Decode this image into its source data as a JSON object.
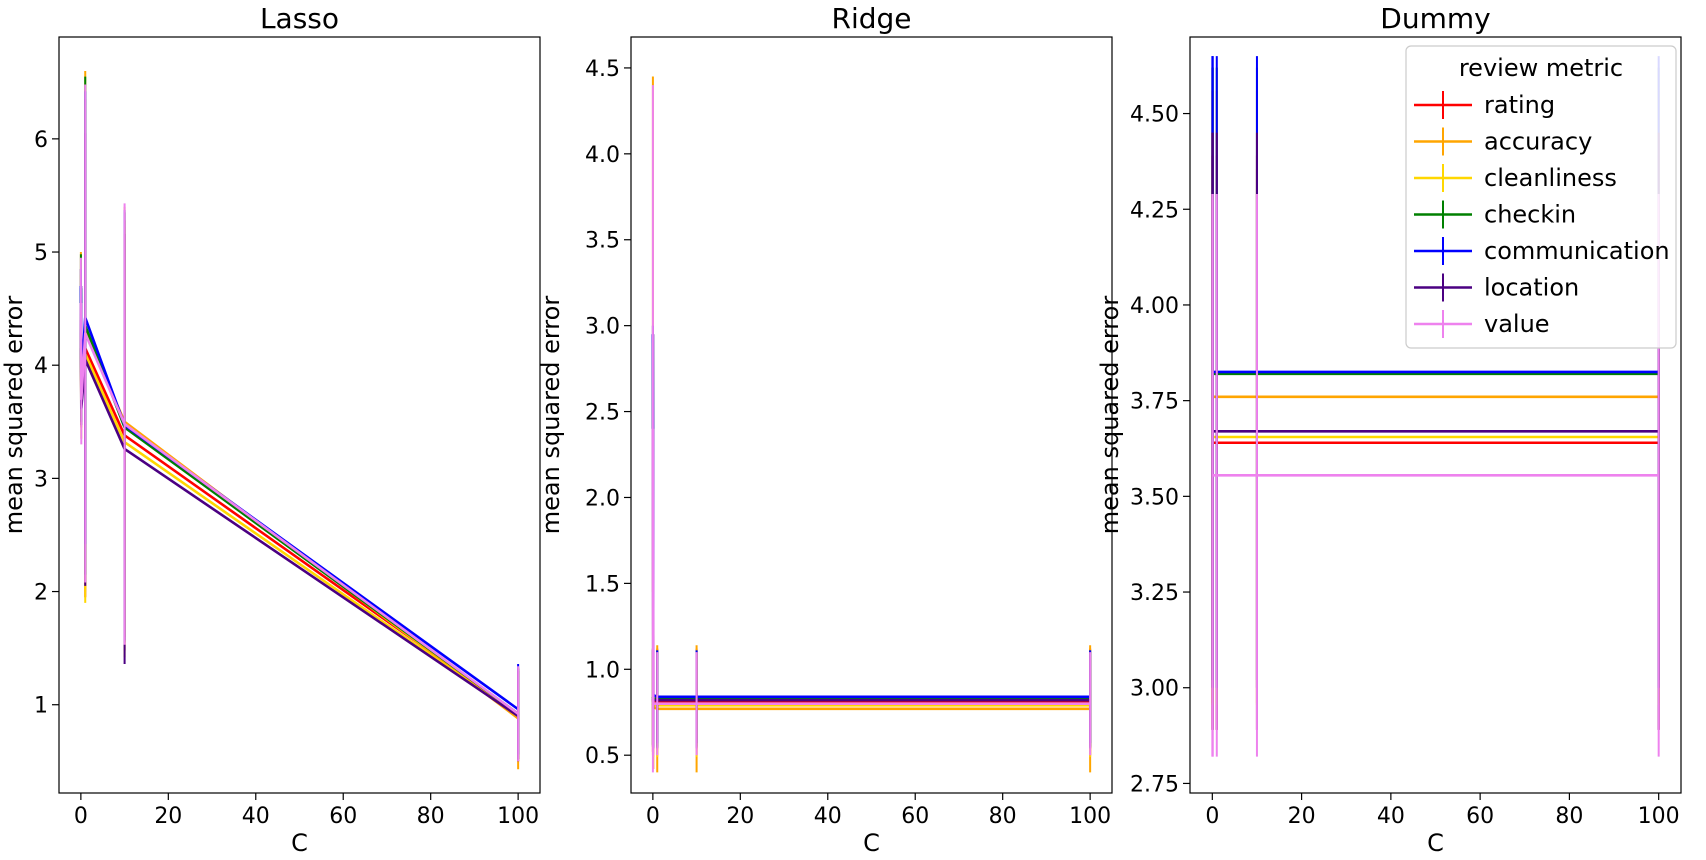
{
  "chart_data": [
    {
      "type": "line",
      "title": "Lasso",
      "xlabel": "C",
      "ylabel": "mean squared error",
      "xlim": [
        -5,
        105
      ],
      "ylim": [
        0.22,
        6.9
      ],
      "x": [
        0.01,
        0.1,
        1,
        10,
        100
      ],
      "xticks": [
        0,
        20,
        40,
        60,
        80,
        100
      ],
      "xticklabels": [
        "0",
        "20",
        "40",
        "60",
        "80",
        "100"
      ],
      "yticks": [
        1,
        2,
        3,
        4,
        5,
        6
      ],
      "yticklabels": [
        "1",
        "2",
        "3",
        "4",
        "5",
        "6"
      ],
      "series": [
        {
          "name": "rating",
          "color": "#ff0000",
          "values": [
            4.55,
            3.75,
            4.15,
            3.38,
            0.92
          ],
          "err": [
            0.3,
            0.3,
            2.2,
            1.9,
            0.4
          ]
        },
        {
          "name": "accuracy",
          "color": "#ffa500",
          "values": [
            4.7,
            3.85,
            4.3,
            3.5,
            0.88
          ],
          "err": [
            0.3,
            0.3,
            2.3,
            1.9,
            0.45
          ]
        },
        {
          "name": "cleanliness",
          "color": "#ffd700",
          "values": [
            4.5,
            3.65,
            4.1,
            3.32,
            0.9
          ],
          "err": [
            0.3,
            0.3,
            2.2,
            1.9,
            0.4
          ]
        },
        {
          "name": "checkin",
          "color": "#008000",
          "values": [
            4.68,
            3.8,
            4.35,
            3.45,
            0.92
          ],
          "err": [
            0.3,
            0.3,
            2.2,
            1.9,
            0.4
          ]
        },
        {
          "name": "communication",
          "color": "#0000ff",
          "values": [
            4.7,
            3.88,
            4.42,
            3.47,
            0.96
          ],
          "err": [
            0.15,
            0.15,
            2.0,
            1.9,
            0.4
          ]
        },
        {
          "name": "location",
          "color": "#4b0082",
          "values": [
            4.4,
            3.62,
            4.05,
            3.26,
            0.9
          ],
          "err": [
            0.15,
            0.15,
            2.0,
            1.9,
            0.4
          ]
        },
        {
          "name": "value",
          "color": "#ee82ee",
          "values": [
            4.55,
            3.7,
            4.28,
            3.48,
            0.92
          ],
          "err": [
            0.4,
            0.4,
            2.2,
            1.95,
            0.42
          ]
        }
      ]
    },
    {
      "type": "line",
      "title": "Ridge",
      "xlabel": "C",
      "ylabel": "mean squared error",
      "xlim": [
        -5,
        105
      ],
      "ylim": [
        0.28,
        4.68
      ],
      "x": [
        0.01,
        0.1,
        1,
        10,
        100
      ],
      "xticks": [
        0,
        20,
        40,
        60,
        80,
        100
      ],
      "xticklabels": [
        "0",
        "20",
        "40",
        "60",
        "80",
        "100"
      ],
      "yticks": [
        0.5,
        1.0,
        1.5,
        2.0,
        2.5,
        3.0,
        3.5,
        4.0,
        4.5
      ],
      "yticklabels": [
        "0.5",
        "1.0",
        "1.5",
        "2.0",
        "2.5",
        "3.0",
        "3.5",
        "4.0",
        "4.5"
      ],
      "series": [
        {
          "name": "rating",
          "color": "#ff0000",
          "values": [
            0.82,
            0.81,
            0.81,
            0.81,
            0.81
          ],
          "err": [
            0.3,
            0.3,
            0.31,
            0.31,
            0.31
          ]
        },
        {
          "name": "accuracy",
          "color": "#ffa500",
          "values": [
            2.95,
            0.78,
            0.77,
            0.77,
            0.77
          ],
          "err": [
            1.5,
            0.36,
            0.37,
            0.37,
            0.37
          ]
        },
        {
          "name": "cleanliness",
          "color": "#ffd700",
          "values": [
            0.8,
            0.79,
            0.79,
            0.79,
            0.79
          ],
          "err": [
            0.3,
            0.3,
            0.3,
            0.3,
            0.3
          ]
        },
        {
          "name": "checkin",
          "color": "#008000",
          "values": [
            0.84,
            0.83,
            0.83,
            0.83,
            0.83
          ],
          "err": [
            0.28,
            0.28,
            0.28,
            0.28,
            0.28
          ]
        },
        {
          "name": "communication",
          "color": "#0000ff",
          "values": [
            2.95,
            0.85,
            0.84,
            0.84,
            0.84
          ],
          "err": [
            0.05,
            0.26,
            0.27,
            0.27,
            0.27
          ]
        },
        {
          "name": "location",
          "color": "#4b0082",
          "values": [
            0.83,
            0.82,
            0.82,
            0.82,
            0.82
          ],
          "err": [
            0.28,
            0.28,
            0.28,
            0.28,
            0.28
          ]
        },
        {
          "name": "value",
          "color": "#ee82ee",
          "values": [
            2.4,
            0.8,
            0.8,
            0.8,
            0.8
          ],
          "err": [
            2.0,
            0.3,
            0.3,
            0.3,
            0.3
          ]
        }
      ]
    },
    {
      "type": "line",
      "title": "Dummy",
      "xlabel": "C",
      "ylabel": "mean squared error",
      "xlim": [
        -5,
        105
      ],
      "ylim": [
        2.725,
        4.7
      ],
      "x": [
        0.01,
        0.1,
        1,
        10,
        100
      ],
      "xticks": [
        0,
        20,
        40,
        60,
        80,
        100
      ],
      "xticklabels": [
        "0",
        "20",
        "40",
        "60",
        "80",
        "100"
      ],
      "yticks": [
        2.75,
        3.0,
        3.25,
        3.5,
        3.75,
        4.0,
        4.25,
        4.5
      ],
      "yticklabels": [
        "2.75",
        "3.00",
        "3.25",
        "3.50",
        "3.75",
        "4.00",
        "4.25",
        "4.50"
      ],
      "series": [
        {
          "name": "rating",
          "color": "#ff0000",
          "values": [
            3.64,
            3.64,
            3.64,
            3.64,
            3.64
          ],
          "err": [
            0.75,
            0.75,
            0.75,
            0.75,
            0.75
          ]
        },
        {
          "name": "accuracy",
          "color": "#ffa500",
          "values": [
            3.76,
            3.76,
            3.76,
            3.76,
            3.76
          ],
          "err": [
            0.8,
            0.8,
            0.8,
            0.8,
            0.8
          ]
        },
        {
          "name": "cleanliness",
          "color": "#ffd700",
          "values": [
            3.655,
            3.655,
            3.655,
            3.655,
            3.655
          ],
          "err": [
            0.7,
            0.7,
            0.7,
            0.7,
            0.7
          ]
        },
        {
          "name": "checkin",
          "color": "#008000",
          "values": [
            3.82,
            3.82,
            3.82,
            3.82,
            3.82
          ],
          "err": [
            0.8,
            0.8,
            0.8,
            0.8,
            0.8
          ]
        },
        {
          "name": "communication",
          "color": "#0000ff",
          "values": [
            3.825,
            3.825,
            3.825,
            3.825,
            3.825
          ],
          "err": [
            0.825,
            0.825,
            0.825,
            0.825,
            0.825
          ]
        },
        {
          "name": "location",
          "color": "#4b0082",
          "values": [
            3.67,
            3.67,
            3.67,
            3.67,
            3.67
          ],
          "err": [
            0.78,
            0.78,
            0.78,
            0.78,
            0.78
          ]
        },
        {
          "name": "value",
          "color": "#ee82ee",
          "values": [
            3.555,
            3.555,
            3.555,
            3.555,
            3.555
          ],
          "err": [
            0.735,
            0.735,
            0.735,
            0.735,
            0.735
          ]
        }
      ]
    }
  ],
  "legend": {
    "title": "review metric",
    "placement": "upper-right of third panel",
    "items": [
      {
        "label": "rating",
        "color": "#ff0000"
      },
      {
        "label": "accuracy",
        "color": "#ffa500"
      },
      {
        "label": "cleanliness",
        "color": "#ffd700"
      },
      {
        "label": "checkin",
        "color": "#008000"
      },
      {
        "label": "communication",
        "color": "#0000ff"
      },
      {
        "label": "location",
        "color": "#4b0082"
      },
      {
        "label": "value",
        "color": "#ee82ee"
      }
    ]
  }
}
